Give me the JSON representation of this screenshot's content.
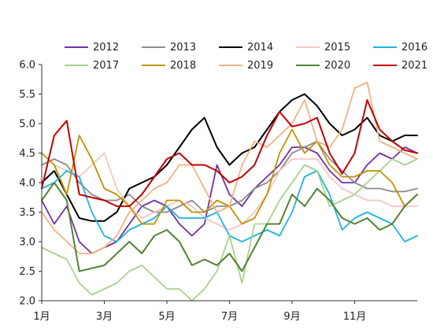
{
  "chart_data": {
    "type": "line",
    "title": "",
    "xlabel": "",
    "ylabel": "",
    "ylim": [
      2.0,
      6.0
    ],
    "yticks": [
      "2.0",
      "2.5",
      "3.0",
      "3.5",
      "4.0",
      "4.5",
      "5.0",
      "5.5",
      "6.0"
    ],
    "xlim": [
      1,
      13
    ],
    "xticks": [
      {
        "value": 1,
        "label": "1月"
      },
      {
        "value": 3,
        "label": "3月"
      },
      {
        "value": 5,
        "label": "5月"
      },
      {
        "value": 7,
        "label": "7月"
      },
      {
        "value": 9,
        "label": "9月"
      },
      {
        "value": 11,
        "label": "11月"
      }
    ],
    "grid": false,
    "legend": "top",
    "series": [
      {
        "name": "2012",
        "color": "#7030a0",
        "x": [
          1,
          1.4,
          1.8,
          2.2,
          2.6,
          3,
          3.4,
          3.8,
          4.2,
          4.6,
          5,
          5.4,
          5.8,
          6.2,
          6.6,
          7,
          7.4,
          7.8,
          8.2,
          8.6,
          9,
          9.4,
          9.8,
          10.2,
          10.6,
          11,
          11.4,
          11.8,
          12.2,
          12.6,
          13
        ],
        "values": [
          3.7,
          3.3,
          3.6,
          3.0,
          2.8,
          2.9,
          3.0,
          3.3,
          3.6,
          3.7,
          3.6,
          3.3,
          3.1,
          3.3,
          4.3,
          3.8,
          3.6,
          3.9,
          4.1,
          4.3,
          4.6,
          4.6,
          4.5,
          4.2,
          4.0,
          4.0,
          4.3,
          4.5,
          4.4,
          4.6,
          4.5
        ]
      },
      {
        "name": "2013",
        "color": "#8c8c8c",
        "x": [
          1,
          1.4,
          1.8,
          2.2,
          2.6,
          3,
          3.4,
          3.8,
          4.2,
          4.6,
          5,
          5.4,
          5.8,
          6.2,
          6.6,
          7,
          7.4,
          7.8,
          8.2,
          8.6,
          9,
          9.4,
          9.8,
          10.2,
          10.6,
          11,
          11.4,
          11.8,
          12.2,
          12.6,
          13
        ],
        "values": [
          4.3,
          4.4,
          4.3,
          4.0,
          3.8,
          3.7,
          3.7,
          3.8,
          3.6,
          3.5,
          3.5,
          3.6,
          3.7,
          3.5,
          3.6,
          3.6,
          3.7,
          3.9,
          4.0,
          4.2,
          4.5,
          4.6,
          4.7,
          4.4,
          4.2,
          4.0,
          3.9,
          3.9,
          3.85,
          3.85,
          3.9
        ]
      },
      {
        "name": "2014",
        "color": "#000000",
        "x": [
          1,
          1.4,
          1.8,
          2.2,
          2.6,
          3,
          3.4,
          3.8,
          4.2,
          4.6,
          5,
          5.4,
          5.8,
          6.2,
          6.6,
          7,
          7.4,
          7.8,
          8.2,
          8.6,
          9,
          9.4,
          9.8,
          10.2,
          10.6,
          11,
          11.4,
          11.8,
          12.2,
          12.6,
          13
        ],
        "values": [
          4.0,
          4.2,
          3.8,
          3.4,
          3.35,
          3.35,
          3.5,
          3.9,
          4.0,
          4.1,
          4.3,
          4.6,
          4.9,
          5.1,
          4.6,
          4.3,
          4.5,
          4.6,
          4.9,
          5.2,
          5.4,
          5.5,
          5.3,
          5.0,
          4.8,
          4.9,
          5.1,
          4.8,
          4.7,
          4.8,
          4.8
        ]
      },
      {
        "name": "2015",
        "color": "#f4c7c3",
        "x": [
          1,
          1.4,
          1.8,
          2.2,
          2.6,
          3,
          3.4,
          3.8,
          4.2,
          4.6,
          5,
          5.4,
          5.8,
          6.2,
          6.6,
          7,
          7.4,
          7.8,
          8.2,
          8.6,
          9,
          9.4,
          9.8,
          10.2,
          10.6,
          11,
          11.4,
          11.8,
          12.2,
          12.6,
          13
        ],
        "values": [
          4.5,
          4.3,
          4.2,
          4.1,
          4.3,
          4.5,
          3.9,
          3.6,
          3.4,
          3.5,
          3.6,
          3.7,
          3.6,
          3.4,
          3.3,
          3.2,
          3.3,
          3.5,
          3.8,
          4.2,
          4.4,
          4.4,
          4.4,
          4.1,
          3.9,
          3.8,
          3.7,
          3.7,
          3.6,
          3.6,
          3.6
        ]
      },
      {
        "name": "2016",
        "color": "#1fb3e0",
        "x": [
          1,
          1.4,
          1.8,
          2.2,
          2.6,
          3,
          3.4,
          3.8,
          4.2,
          4.6,
          5,
          5.4,
          5.8,
          6.2,
          6.6,
          7,
          7.4,
          7.8,
          8.2,
          8.6,
          9,
          9.4,
          9.8,
          10.2,
          10.6,
          11,
          11.4,
          11.8,
          12.2,
          12.6,
          13
        ],
        "values": [
          3.9,
          4.0,
          4.2,
          4.1,
          3.5,
          3.1,
          3.0,
          3.2,
          3.3,
          3.4,
          3.6,
          3.4,
          3.4,
          3.4,
          3.5,
          3.1,
          3.0,
          3.1,
          3.2,
          3.1,
          3.5,
          4.1,
          4.2,
          3.8,
          3.2,
          3.4,
          3.5,
          3.4,
          3.3,
          3.0,
          3.1
        ]
      },
      {
        "name": "2017",
        "color": "#a9d18e",
        "x": [
          1,
          1.4,
          1.8,
          2.2,
          2.6,
          3,
          3.4,
          3.8,
          4.2,
          4.6,
          5,
          5.4,
          5.8,
          6.2,
          6.6,
          7,
          7.4,
          7.8,
          8.2,
          8.6,
          9,
          9.4,
          9.8,
          10.2,
          10.6,
          11,
          11.4,
          11.8,
          12.2,
          12.6,
          13
        ],
        "values": [
          2.9,
          2.8,
          2.7,
          2.3,
          2.1,
          2.2,
          2.3,
          2.5,
          2.6,
          2.4,
          2.2,
          2.2,
          2.0,
          2.2,
          2.5,
          3.1,
          2.3,
          3.3,
          3.3,
          3.7,
          4.0,
          4.3,
          4.2,
          3.6,
          3.7,
          3.8,
          4.0,
          4.2,
          4.4,
          4.3,
          4.4
        ]
      },
      {
        "name": "2018",
        "color": "#c09100",
        "x": [
          1,
          1.4,
          1.8,
          2.2,
          2.6,
          3,
          3.4,
          3.8,
          4.2,
          4.6,
          5,
          5.4,
          5.8,
          6.2,
          6.6,
          7,
          7.4,
          7.8,
          8.2,
          8.6,
          9,
          9.4,
          9.8,
          10.2,
          10.6,
          11,
          11.4,
          11.8,
          12.2,
          12.6,
          13
        ],
        "values": [
          4.5,
          4.3,
          3.8,
          4.8,
          4.4,
          3.9,
          3.8,
          3.6,
          3.3,
          3.3,
          3.7,
          3.7,
          3.5,
          3.5,
          3.7,
          3.6,
          3.3,
          3.4,
          3.8,
          4.5,
          4.9,
          4.5,
          4.7,
          4.3,
          4.1,
          4.1,
          4.2,
          4.2,
          4.0,
          3.6,
          3.8
        ]
      },
      {
        "name": "2019",
        "color": "#f4b183",
        "x": [
          1,
          1.4,
          1.8,
          2.2,
          2.6,
          3,
          3.4,
          3.8,
          4.2,
          4.6,
          5,
          5.4,
          5.8,
          6.2,
          6.6,
          7,
          7.4,
          7.8,
          8.2,
          8.6,
          9,
          9.4,
          9.8,
          10.2,
          10.6,
          11,
          11.4,
          11.8,
          12.2,
          12.6,
          13
        ],
        "values": [
          3.5,
          3.2,
          3.0,
          2.8,
          2.8,
          2.9,
          3.1,
          3.5,
          3.7,
          3.9,
          4.0,
          4.3,
          4.3,
          3.9,
          3.5,
          3.6,
          4.3,
          4.7,
          4.6,
          4.8,
          5.0,
          5.4,
          4.7,
          4.6,
          4.9,
          5.6,
          5.7,
          4.7,
          4.6,
          4.5,
          4.4
        ]
      },
      {
        "name": "2020",
        "color": "#548235",
        "x": [
          1,
          1.4,
          1.8,
          2.2,
          2.6,
          3,
          3.4,
          3.8,
          4.2,
          4.6,
          5,
          5.4,
          5.8,
          6.2,
          6.6,
          7,
          7.4,
          7.8,
          8.2,
          8.6,
          9,
          9.4,
          9.8,
          10.2,
          10.6,
          11,
          11.4,
          11.8,
          12.2,
          12.6,
          13
        ],
        "values": [
          3.7,
          4.0,
          3.7,
          2.5,
          2.55,
          2.6,
          2.8,
          3.0,
          2.8,
          3.1,
          3.2,
          3.0,
          2.6,
          2.7,
          2.6,
          2.8,
          2.5,
          2.9,
          3.3,
          3.3,
          3.8,
          3.6,
          3.9,
          3.7,
          3.4,
          3.3,
          3.4,
          3.2,
          3.3,
          3.6,
          3.8
        ]
      },
      {
        "name": "2021",
        "color": "#c00000",
        "x": [
          1,
          1.4,
          1.8,
          2.2,
          2.6,
          3,
          3.4,
          3.8,
          4.2,
          4.6,
          5,
          5.4,
          5.8,
          6.2,
          6.6,
          7,
          7.4,
          7.8,
          8.2,
          8.6,
          9,
          9.4,
          9.8,
          10.2,
          10.6,
          11,
          11.4,
          11.8,
          12.2,
          12.6,
          13
        ],
        "values": [
          3.9,
          4.8,
          5.05,
          3.8,
          3.75,
          3.7,
          3.6,
          3.6,
          3.8,
          4.1,
          4.4,
          4.5,
          4.3,
          4.3,
          4.2,
          4.0,
          4.1,
          4.3,
          4.8,
          5.2,
          4.95,
          5.0,
          5.1,
          4.5,
          4.15,
          4.5,
          5.4,
          4.9,
          4.7,
          4.55,
          4.5
        ]
      }
    ]
  }
}
